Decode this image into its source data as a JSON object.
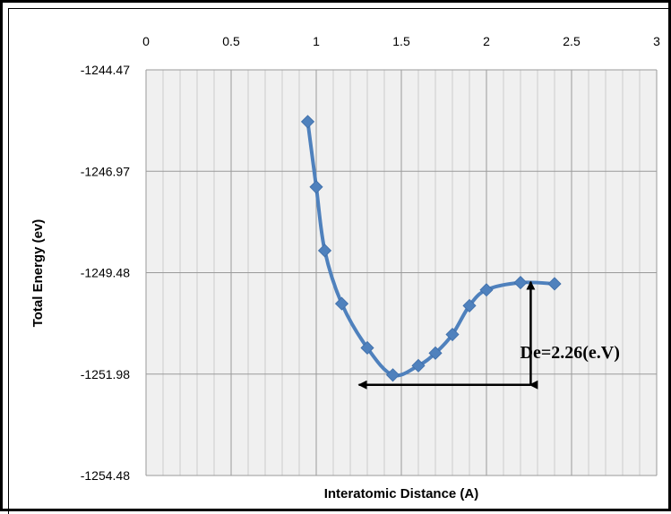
{
  "chart_data": {
    "type": "line",
    "title": "",
    "xlabel": "Interatomic Distance (A)",
    "ylabel": "Total Energy (ev)",
    "xlim": [
      0,
      3
    ],
    "ylim": [
      -1254.48,
      -1244.47
    ],
    "x_ticks": [
      "0",
      "0.5",
      "1",
      "1.5",
      "2",
      "2.5",
      "3"
    ],
    "y_ticks": [
      "-1244.47",
      "-1246.97",
      "-1249.48",
      "-1251.98",
      "-1254.48"
    ],
    "x_axis_position": "top",
    "grid": true,
    "legend": "none",
    "series": [
      {
        "color": "#4f81bd",
        "marker": "diamond",
        "x": [
          0.95,
          1.0,
          1.05,
          1.15,
          1.3,
          1.45,
          1.6,
          1.7,
          1.8,
          1.9,
          2.0,
          2.2,
          2.4
        ],
        "y": [
          -1245.75,
          -1247.36,
          -1248.93,
          -1250.24,
          -1251.33,
          -1252.0,
          -1251.77,
          -1251.46,
          -1251.0,
          -1250.29,
          -1249.9,
          -1249.72,
          -1249.75
        ]
      }
    ],
    "annotation": {
      "text": "De=2.26(e.V)"
    }
  }
}
